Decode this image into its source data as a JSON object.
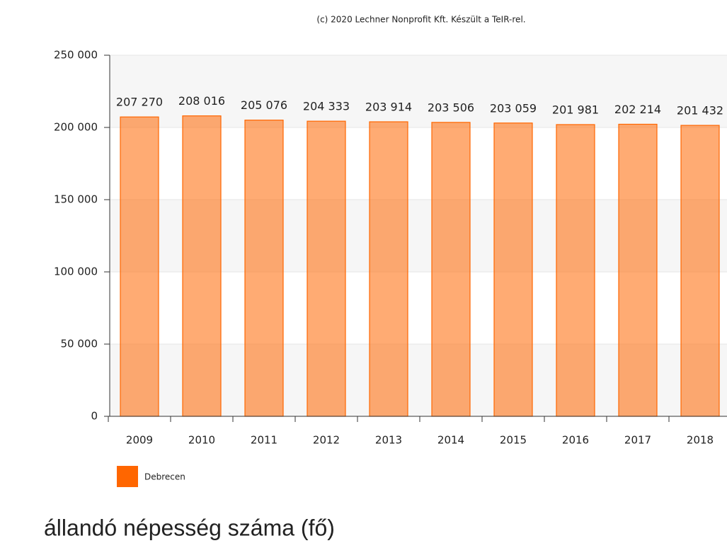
{
  "chart_data": {
    "type": "bar",
    "credits": "(c) 2020 Lechner Nonprofit Kft. Készült a TeIR-rel.",
    "title": "állandó népesség száma (fő)",
    "categories": [
      "2009",
      "2010",
      "2011",
      "2012",
      "2013",
      "2014",
      "2015",
      "2016",
      "2017",
      "2018"
    ],
    "series": [
      {
        "name": "Debrecen",
        "color": "#ff6600",
        "values": [
          207270,
          208016,
          205076,
          204333,
          203914,
          203506,
          203059,
          201981,
          202214,
          201432
        ],
        "value_labels": [
          "207 270",
          "208 016",
          "205 076",
          "204 333",
          "203 914",
          "203 506",
          "203 059",
          "201 981",
          "202 214",
          "201 432"
        ]
      }
    ],
    "ylim": [
      0,
      250000
    ],
    "yticks": [
      0,
      {
        "value": 50000,
        "label": "50 000"
      },
      {
        "value": 100000,
        "label": "100 000"
      },
      {
        "value": 150000,
        "label": "150 000"
      },
      {
        "value": 200000,
        "label": "200 000"
      },
      {
        "value": 250000,
        "label": "250 000"
      }
    ],
    "grid": true
  }
}
